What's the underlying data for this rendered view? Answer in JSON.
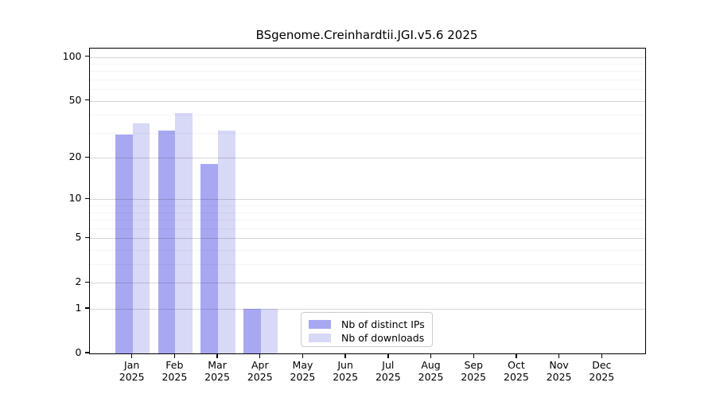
{
  "chart_data": {
    "type": "bar",
    "title": "BSgenome.Creinhardtii.JGI.v5.6 2025",
    "categories": [
      "Jan",
      "Feb",
      "Mar",
      "Apr",
      "May",
      "Jun",
      "Jul",
      "Aug",
      "Sep",
      "Oct",
      "Nov",
      "Dec"
    ],
    "x_year_label": "2025",
    "series": [
      {
        "name": "Nb of distinct IPs",
        "color": "#a8a8f2",
        "values": [
          29,
          31,
          18,
          1,
          0,
          0,
          0,
          0,
          0,
          0,
          0,
          0
        ]
      },
      {
        "name": "Nb of downloads",
        "color": "#d8d8f7",
        "values": [
          35,
          41,
          31,
          1,
          0,
          0,
          0,
          0,
          0,
          0,
          0,
          0
        ]
      }
    ],
    "y_axis": {
      "scale": "log1p",
      "ticks": [
        0,
        1,
        2,
        5,
        10,
        20,
        50,
        100
      ],
      "minor_gridlines": [
        3,
        4,
        6,
        7,
        8,
        9,
        30,
        40,
        60,
        70,
        80,
        90
      ],
      "ylim": [
        0,
        115
      ]
    },
    "legend_position": "lower-center",
    "grid": true
  }
}
